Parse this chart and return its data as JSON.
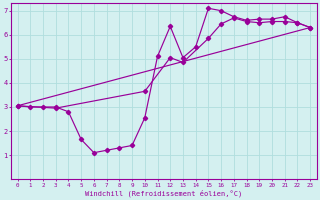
{
  "xlabel": "Windchill (Refroidissement éolien,°C)",
  "bg_color": "#d4f0f0",
  "line_color": "#990099",
  "grid_color": "#b0dede",
  "xlim": [
    -0.5,
    23.5
  ],
  "ylim": [
    0,
    7.3
  ],
  "xticks": [
    0,
    1,
    2,
    3,
    4,
    5,
    6,
    7,
    8,
    9,
    10,
    11,
    12,
    13,
    14,
    15,
    16,
    17,
    18,
    19,
    20,
    21,
    22,
    23
  ],
  "yticks": [
    1,
    2,
    3,
    4,
    5,
    6,
    7
  ],
  "curve1_x": [
    0,
    1,
    2,
    3,
    4,
    5,
    6,
    7,
    8,
    9,
    10,
    11,
    12,
    13,
    14,
    15,
    16,
    17,
    18,
    19,
    20,
    21,
    22,
    23
  ],
  "curve1_y": [
    3.05,
    3.0,
    3.0,
    3.0,
    2.8,
    1.65,
    1.1,
    1.2,
    1.3,
    1.4,
    2.55,
    5.1,
    6.35,
    5.05,
    5.5,
    7.1,
    7.0,
    6.75,
    6.6,
    6.65,
    6.65,
    6.75,
    6.5,
    6.3
  ],
  "curve2_x": [
    0,
    3,
    10,
    12,
    13,
    15,
    16,
    17,
    18,
    19,
    20,
    21,
    22,
    23
  ],
  "curve2_y": [
    3.05,
    2.95,
    3.65,
    5.05,
    4.85,
    5.85,
    6.45,
    6.7,
    6.55,
    6.5,
    6.55,
    6.55,
    6.5,
    6.3
  ],
  "curve3_x": [
    0,
    23
  ],
  "curve3_y": [
    3.05,
    6.3
  ]
}
